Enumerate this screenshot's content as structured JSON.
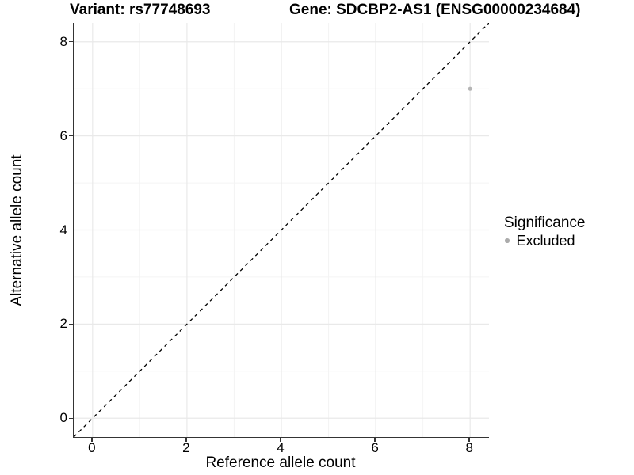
{
  "chart_data": {
    "type": "scatter",
    "title_left": "Variant: rs77748693",
    "title_right": "Gene: SDCBP2-AS1 (ENSG00000234684)",
    "xlabel": "Reference allele count",
    "ylabel": "Alternative allele count",
    "xlim": [
      -0.4,
      8.4
    ],
    "ylim": [
      -0.4,
      8.4
    ],
    "x_major_ticks": [
      0,
      2,
      4,
      6,
      8
    ],
    "y_major_ticks": [
      0,
      2,
      4,
      6,
      8
    ],
    "x_minor_gridlines": [
      1,
      3,
      5,
      7
    ],
    "y_minor_gridlines": [
      1,
      3,
      5,
      7
    ],
    "grid": "major-and-minor",
    "series": [
      {
        "name": "Excluded",
        "marker": "circle",
        "color": "#b5b5b5",
        "points": [
          [
            8,
            7
          ]
        ]
      }
    ],
    "reference_line": {
      "equation": "y = x",
      "style": "dashed",
      "color": "#000000",
      "from": [
        -0.4,
        -0.4
      ],
      "to": [
        8.4,
        8.4
      ]
    },
    "legend": {
      "title": "Significance",
      "position": "right",
      "entries": [
        {
          "label": "Excluded",
          "marker": "circle",
          "color": "#ababab"
        }
      ]
    }
  },
  "colors": {
    "background": "#ffffff",
    "axis_line": "#343434",
    "tick_mark": "#343434",
    "major_gridline": "#e9e9e9",
    "minor_gridline": "#f4f4f4",
    "text": "#000000"
  }
}
